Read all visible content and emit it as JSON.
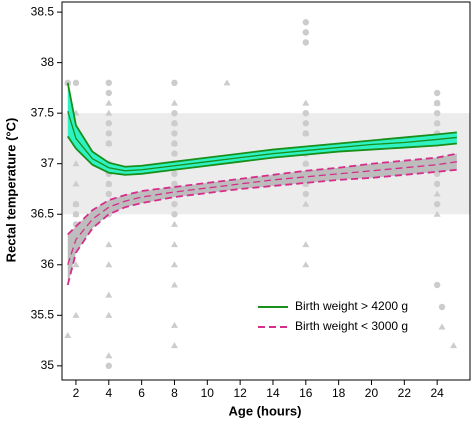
{
  "chart_data": {
    "type": "line",
    "x_label": "Age (hours)",
    "y_label": "Rectal temperature (°C)",
    "xlim": [
      1.15,
      26
    ],
    "ylim": [
      34.86,
      38.6
    ],
    "xticks": [
      2,
      4,
      6,
      8,
      10,
      12,
      14,
      16,
      18,
      20,
      22,
      24
    ],
    "yticks": [
      35,
      35.5,
      36,
      36.5,
      37,
      37.5,
      38,
      38.5
    ],
    "reference_band": [
      36.5,
      37.5
    ],
    "reference_color": "#ececec",
    "legend": "lower right",
    "point_color": "#cccccc",
    "series": [
      {
        "name": "Birth weight > 4200 g",
        "color": "#1a8f1a",
        "fill": "#2ef2c4",
        "dashed": false,
        "marker": "circle",
        "x": [
          1.5,
          2,
          3,
          4,
          5,
          6,
          8,
          10,
          12,
          14,
          16,
          18,
          20,
          22,
          24,
          25.2
        ],
        "values": [
          37.52,
          37.25,
          37.05,
          36.96,
          36.93,
          36.94,
          36.98,
          37.02,
          37.06,
          37.1,
          37.13,
          37.16,
          37.19,
          37.21,
          37.24,
          37.26
        ],
        "lower": [
          37.27,
          37.15,
          36.99,
          36.91,
          36.89,
          36.9,
          36.94,
          36.98,
          37.02,
          37.06,
          37.09,
          37.12,
          37.14,
          37.16,
          37.18,
          37.2
        ],
        "upper": [
          37.8,
          37.38,
          37.12,
          37.01,
          36.97,
          36.98,
          37.02,
          37.06,
          37.1,
          37.14,
          37.17,
          37.2,
          37.23,
          37.26,
          37.29,
          37.31
        ],
        "points_x": [
          1.5,
          2,
          2,
          2,
          2,
          4,
          4,
          4,
          4,
          4,
          4,
          4,
          4,
          4,
          4,
          4,
          8,
          8,
          8,
          8,
          8,
          8,
          8,
          8,
          8,
          8,
          8,
          16,
          16,
          16,
          16,
          16,
          16,
          16,
          16,
          16,
          16,
          24,
          24,
          24,
          24,
          24,
          24,
          24,
          24,
          24,
          24,
          24
        ],
        "points_y": [
          37.8,
          37.8,
          36.6,
          36.5,
          36.4,
          37.8,
          37.7,
          37.4,
          37.3,
          37.2,
          37.0,
          36.9,
          36.8,
          36.7,
          36.5,
          35.0,
          37.8,
          37.5,
          37.4,
          37.3,
          37.2,
          37.1,
          37.0,
          36.9,
          36.8,
          36.6,
          36.5,
          38.4,
          38.3,
          38.2,
          37.5,
          37.4,
          37.3,
          37.1,
          37.0,
          36.8,
          36.7,
          37.7,
          37.6,
          37.5,
          37.4,
          37.3,
          37.2,
          37.0,
          36.9,
          36.8,
          36.6,
          35.8
        ]
      },
      {
        "name": "Birth weight < 3000 g",
        "color": "#d42e8a",
        "fill": "#bdbdbd",
        "dashed": true,
        "marker": "triangle",
        "x": [
          1.5,
          2,
          3,
          4,
          5,
          6,
          8,
          10,
          12,
          14,
          16,
          18,
          20,
          22,
          24,
          25.2
        ],
        "values": [
          36.0,
          36.25,
          36.45,
          36.57,
          36.63,
          36.67,
          36.72,
          36.76,
          36.8,
          36.84,
          36.87,
          36.9,
          36.93,
          36.96,
          36.99,
          37.02
        ],
        "lower": [
          35.8,
          36.12,
          36.36,
          36.5,
          36.57,
          36.61,
          36.67,
          36.71,
          36.75,
          36.78,
          36.81,
          36.84,
          36.86,
          36.89,
          36.92,
          36.94
        ],
        "upper": [
          36.3,
          36.38,
          36.54,
          36.64,
          36.69,
          36.73,
          36.77,
          36.81,
          36.85,
          36.89,
          36.93,
          36.96,
          37.0,
          37.03,
          37.06,
          37.1
        ],
        "points_x": [
          1.5,
          1.5,
          2,
          2,
          2,
          2,
          2,
          2,
          2,
          2,
          2,
          4,
          4,
          4,
          4,
          4,
          4,
          4,
          4,
          4,
          4,
          4,
          8,
          8,
          8,
          8,
          8,
          8,
          8,
          8,
          8,
          8,
          8,
          11.2,
          16,
          16,
          16,
          16,
          16,
          16,
          16,
          24,
          24,
          24,
          24,
          24,
          24,
          25
        ],
        "points_y": [
          37.8,
          35.3,
          37.5,
          37.2,
          37.0,
          36.8,
          36.6,
          36.5,
          36.2,
          36.0,
          35.5,
          37.6,
          37.5,
          37.2,
          37.0,
          36.8,
          36.6,
          36.2,
          36.0,
          35.7,
          35.5,
          35.1,
          37.6,
          37.4,
          37.2,
          37.0,
          36.8,
          36.4,
          36.2,
          36.0,
          35.8,
          35.4,
          35.2,
          37.8,
          37.6,
          37.3,
          37.0,
          36.8,
          36.6,
          36.2,
          36.0,
          37.6,
          37.4,
          37.2,
          37.0,
          36.7,
          36.5,
          35.2
        ]
      }
    ]
  }
}
